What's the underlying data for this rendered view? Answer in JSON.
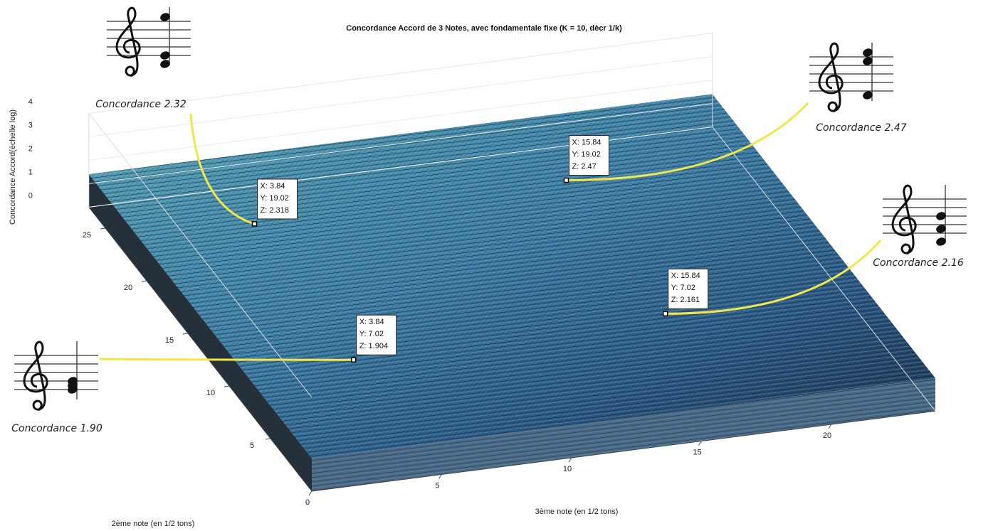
{
  "chart_data": {
    "type": "surface3d",
    "title": "Concordance Accord de 3 Notes, avec fondamentale fixe (K = 10, dècr 1/k)",
    "xlabel": "3ème note (en 1/2 tons)",
    "ylabel": "2ème note (en 1/2 tons)",
    "zlabel": "Concordance Accord(échelle log)",
    "xlim": [
      0,
      24
    ],
    "ylim": [
      0,
      27
    ],
    "zlim": [
      0,
      4
    ],
    "xticks": [
      0,
      5,
      10,
      15,
      20
    ],
    "yticks": [
      5,
      10,
      15,
      20,
      25
    ],
    "zticks": [
      0,
      1,
      2,
      3,
      4
    ],
    "datatips": [
      {
        "x": 3.84,
        "y": 19.02,
        "z": 2.318,
        "text": [
          "X: 3.84",
          "Y: 19.02",
          "Z: 2.318"
        ],
        "caption": "Concordance 2.32"
      },
      {
        "x": 15.84,
        "y": 19.02,
        "z": 2.47,
        "text": [
          "X: 15.84",
          "Y: 19.02",
          "Z: 2.47"
        ],
        "caption": "Concordance 2.47"
      },
      {
        "x": 3.84,
        "y": 7.02,
        "z": 1.904,
        "text": [
          "X: 3.84",
          "Y: 7.02",
          "Z: 1.904"
        ],
        "caption": "Concordance 1.90"
      },
      {
        "x": 15.84,
        "y": 7.02,
        "z": 2.161,
        "text": [
          "X: 15.84",
          "Y: 7.02",
          "Z: 2.161"
        ],
        "caption": "Concordance 2.16"
      }
    ]
  }
}
